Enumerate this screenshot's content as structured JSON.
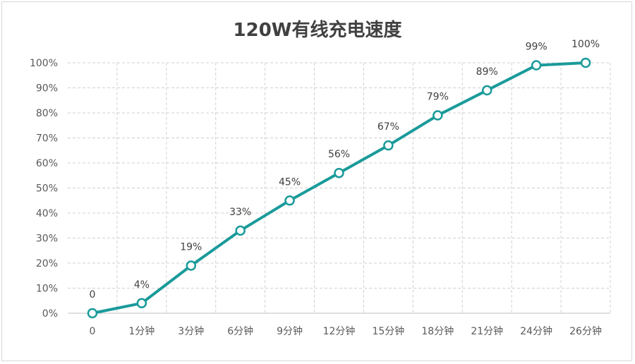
{
  "chart_data": {
    "type": "line",
    "title": "120W有线充电速度",
    "xlabel": "",
    "ylabel": "",
    "categories": [
      "0",
      "1分钟",
      "3分钟",
      "6分钟",
      "9分钟",
      "12分钟",
      "15分钟",
      "18分钟",
      "21分钟",
      "24分钟",
      "26分钟"
    ],
    "series": [
      {
        "values": [
          0,
          4,
          19,
          33,
          45,
          56,
          67,
          79,
          89,
          99,
          100
        ],
        "data_labels": [
          "0",
          "4%",
          "19%",
          "33%",
          "45%",
          "56%",
          "67%",
          "79%",
          "89%",
          "99%",
          "100%"
        ]
      }
    ],
    "ylim": [
      0,
      100
    ],
    "yticks": [
      "0%",
      "10%",
      "20%",
      "30%",
      "40%",
      "50%",
      "60%",
      "70%",
      "80%",
      "90%",
      "100%"
    ],
    "grid": true,
    "legend": "none",
    "line_color": "#1a9a9a",
    "marker_fill": "#ffffff"
  }
}
